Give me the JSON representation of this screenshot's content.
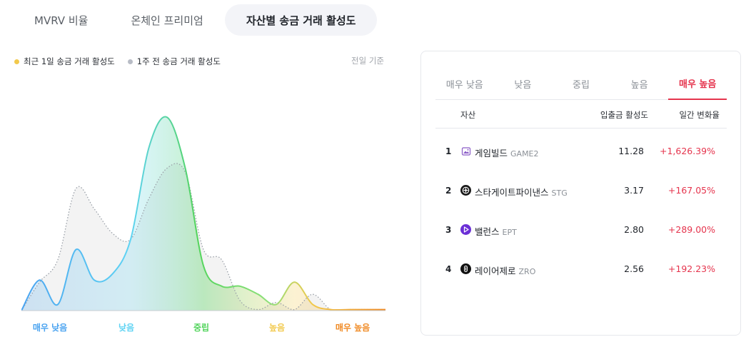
{
  "top_tabs": [
    {
      "label": "MVRV 비율",
      "active": false
    },
    {
      "label": "온체인 프리미엄",
      "active": false
    },
    {
      "label": "자산별 송금 거래 활성도",
      "active": true
    }
  ],
  "legend": {
    "recent": "최근 1일 송금 거래 활성도",
    "week_ago": "1주 전 송금 거래 활성도",
    "basis": "전일 기준"
  },
  "colors": {
    "recent_dot": "#f2c94c",
    "week_dot": "#b8bcc6",
    "accent_red": "#e5344d",
    "very_low": "#4aa3f0",
    "low": "#5ed3f3",
    "neutral": "#52d45c",
    "high": "#f2c94c",
    "very_high": "#f08a24"
  },
  "chart_data": {
    "type": "area",
    "x_categories": [
      "매우 낮음",
      "낮음",
      "중립",
      "높음",
      "매우 높음"
    ],
    "x": [
      0,
      0.05,
      0.1,
      0.15,
      0.2,
      0.25,
      0.3,
      0.35,
      0.4,
      0.45,
      0.5,
      0.55,
      0.6,
      0.65,
      0.7,
      0.75,
      0.8,
      0.85,
      0.9,
      0.95,
      1.0
    ],
    "series": [
      {
        "name": "최근 1일 송금 거래 활성도",
        "values": [
          0,
          15,
          3,
          30,
          15,
          18,
          35,
          80,
          95,
          70,
          22,
          12,
          12,
          8,
          3,
          14,
          3,
          0.5,
          0.5,
          0.5,
          0.5
        ]
      },
      {
        "name": "1주 전 송금 거래 활성도",
        "values": [
          0,
          14,
          25,
          60,
          50,
          38,
          35,
          55,
          70,
          68,
          30,
          25,
          5,
          0.5,
          4,
          0.5,
          8,
          0.5,
          0.5,
          0.5,
          0.5
        ]
      }
    ],
    "ylim": [
      0,
      100
    ],
    "grid": false
  },
  "right_panel": {
    "tabs": [
      {
        "label": "매우 낮음",
        "active": false
      },
      {
        "label": "낮음",
        "active": false
      },
      {
        "label": "중립",
        "active": false
      },
      {
        "label": "높음",
        "active": false
      },
      {
        "label": "매우 높음",
        "active": true
      }
    ],
    "headers": {
      "asset": "자산",
      "activity": "입출금 활성도",
      "change": "일간 변화율"
    },
    "rows": [
      {
        "rank": "1",
        "name": "게임빌드",
        "symbol": "GAME2",
        "activity": "11.28",
        "change": "+1,626.39%",
        "icon": "gamebuild-icon"
      },
      {
        "rank": "2",
        "name": "스타게이트파이낸스",
        "symbol": "STG",
        "activity": "3.17",
        "change": "+167.05%",
        "icon": "stargate-icon"
      },
      {
        "rank": "3",
        "name": "밸런스",
        "symbol": "EPT",
        "activity": "2.80",
        "change": "+289.00%",
        "icon": "balance-icon"
      },
      {
        "rank": "4",
        "name": "레이어제로",
        "symbol": "ZRO",
        "activity": "2.56",
        "change": "+192.23%",
        "icon": "layerzero-icon"
      }
    ]
  }
}
